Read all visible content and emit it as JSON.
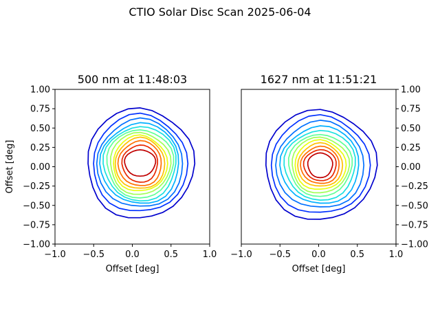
{
  "figure": {
    "suptitle": "CTIO Solar Disc Scan 2025-06-04"
  },
  "chart_data": [
    {
      "type": "contour",
      "title": "500 nm at 11:48:03",
      "xlabel": "Offset [deg]",
      "ylabel": "Offset [deg]",
      "xlim": [
        -1.0,
        1.0
      ],
      "ylim": [
        -1.0,
        1.0
      ],
      "xticks": [
        "−1.0",
        "−0.5",
        "0.0",
        "0.5",
        "1.0"
      ],
      "yticks": [
        "−1.00",
        "−0.75",
        "−0.50",
        "−0.25",
        "0.00",
        "0.25",
        "0.50",
        "0.75",
        "1.00"
      ],
      "y_axis_side": "left",
      "grid": false,
      "center": [
        0.1,
        0.04
      ],
      "levels": [
        {
          "color": "#0000cd",
          "rx": 0.69,
          "ry": 0.71
        },
        {
          "color": "#0030ff",
          "rx": 0.61,
          "ry": 0.63
        },
        {
          "color": "#0070ff",
          "rx": 0.555,
          "ry": 0.57
        },
        {
          "color": "#00b0ff",
          "rx": 0.51,
          "ry": 0.52
        },
        {
          "color": "#18e0e0",
          "rx": 0.47,
          "ry": 0.48
        },
        {
          "color": "#60ff98",
          "rx": 0.43,
          "ry": 0.44
        },
        {
          "color": "#a0ff58",
          "rx": 0.39,
          "ry": 0.4
        },
        {
          "color": "#e8ff10",
          "rx": 0.35,
          "ry": 0.36
        },
        {
          "color": "#ffc000",
          "rx": 0.32,
          "ry": 0.33
        },
        {
          "color": "#ff7000",
          "rx": 0.28,
          "ry": 0.29
        },
        {
          "color": "#e82800",
          "rx": 0.23,
          "ry": 0.24
        },
        {
          "color": "#c00000",
          "rx": 0.2,
          "ry": 0.17,
          "cy": 0.05
        }
      ]
    },
    {
      "type": "contour",
      "title": "1627 nm at 11:51:21",
      "xlabel": "Offset [deg]",
      "ylabel": "",
      "xlim": [
        -1.0,
        1.0
      ],
      "ylim": [
        -1.0,
        1.0
      ],
      "xticks": [
        "−1.0",
        "−0.5",
        "0.0",
        "0.5",
        "1.0"
      ],
      "yticks": [
        "−1.00",
        "−0.75",
        "−0.50",
        "−0.25",
        "0.00",
        "0.25",
        "0.50",
        "0.75",
        "1.00"
      ],
      "y_axis_side": "right",
      "grid": false,
      "center": [
        0.02,
        0.02
      ],
      "levels": [
        {
          "color": "#0000cd",
          "rx": 0.72,
          "ry": 0.71
        },
        {
          "color": "#0030ff",
          "rx": 0.64,
          "ry": 0.63
        },
        {
          "color": "#0070ff",
          "rx": 0.57,
          "ry": 0.56
        },
        {
          "color": "#00b0ff",
          "rx": 0.51,
          "ry": 0.5
        },
        {
          "color": "#18e0e0",
          "rx": 0.46,
          "ry": 0.45
        },
        {
          "color": "#60ff98",
          "rx": 0.41,
          "ry": 0.4
        },
        {
          "color": "#a0ff58",
          "rx": 0.37,
          "ry": 0.36
        },
        {
          "color": "#e8ff10",
          "rx": 0.33,
          "ry": 0.32
        },
        {
          "color": "#ffc000",
          "rx": 0.29,
          "ry": 0.28
        },
        {
          "color": "#ff7000",
          "rx": 0.25,
          "ry": 0.24
        },
        {
          "color": "#e82800",
          "rx": 0.21,
          "ry": 0.2
        },
        {
          "color": "#c00000",
          "rx": 0.16,
          "ry": 0.16
        }
      ]
    }
  ]
}
